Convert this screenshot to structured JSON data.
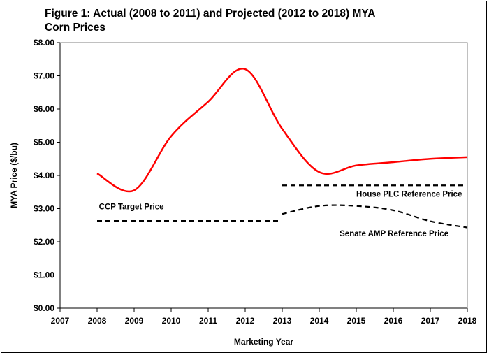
{
  "chart_data": {
    "type": "line",
    "title_lines": [
      "Figure 1: Actual (2008 to 2011) and Projected (2012 to 2018) MYA",
      "Corn Prices"
    ],
    "xlabel": "Marketing Year",
    "ylabel": "MYA Price ($/bu)",
    "xlim": [
      2007,
      2018
    ],
    "ylim": [
      0,
      8
    ],
    "x_ticks": [
      "2007",
      "2008",
      "2009",
      "2010",
      "2011",
      "2012",
      "2013",
      "2014",
      "2015",
      "2016",
      "2017",
      "2018"
    ],
    "y_ticks": [
      "$0.00",
      "$1.00",
      "$2.00",
      "$3.00",
      "$4.00",
      "$5.00",
      "$6.00",
      "$7.00",
      "$8.00"
    ],
    "grid": false,
    "series": [
      {
        "style": "solid",
        "color": "#ff0000",
        "points": [
          [
            2008,
            4.06
          ],
          [
            2009,
            3.55
          ],
          [
            2010,
            5.18
          ],
          [
            2011,
            6.22
          ],
          [
            2012,
            7.2
          ],
          [
            2013,
            5.4
          ],
          [
            2014,
            4.1
          ],
          [
            2015,
            4.3
          ],
          [
            2016,
            4.4
          ],
          [
            2017,
            4.5
          ],
          [
            2018,
            4.55
          ]
        ]
      },
      {
        "style": "dashed",
        "color": "#000000",
        "points": [
          [
            2008,
            2.63
          ],
          [
            2013,
            2.63
          ]
        ]
      },
      {
        "style": "dashed",
        "color": "#000000",
        "points": [
          [
            2013,
            3.7
          ],
          [
            2018,
            3.7
          ]
        ]
      },
      {
        "style": "dashed",
        "color": "#000000",
        "points": [
          [
            2013,
            2.84
          ],
          [
            2014,
            3.08
          ],
          [
            2015,
            3.08
          ],
          [
            2016,
            2.95
          ],
          [
            2017,
            2.62
          ],
          [
            2018,
            2.43
          ]
        ]
      }
    ],
    "annotations": [
      {
        "text": "CCP Target Price",
        "x": 2008.05,
        "y": 2.98
      },
      {
        "text": "House PLC Reference Price",
        "x": 2015.0,
        "y": 3.36
      },
      {
        "text": "Senate AMP Reference Price",
        "x": 2014.55,
        "y": 2.17
      }
    ]
  }
}
